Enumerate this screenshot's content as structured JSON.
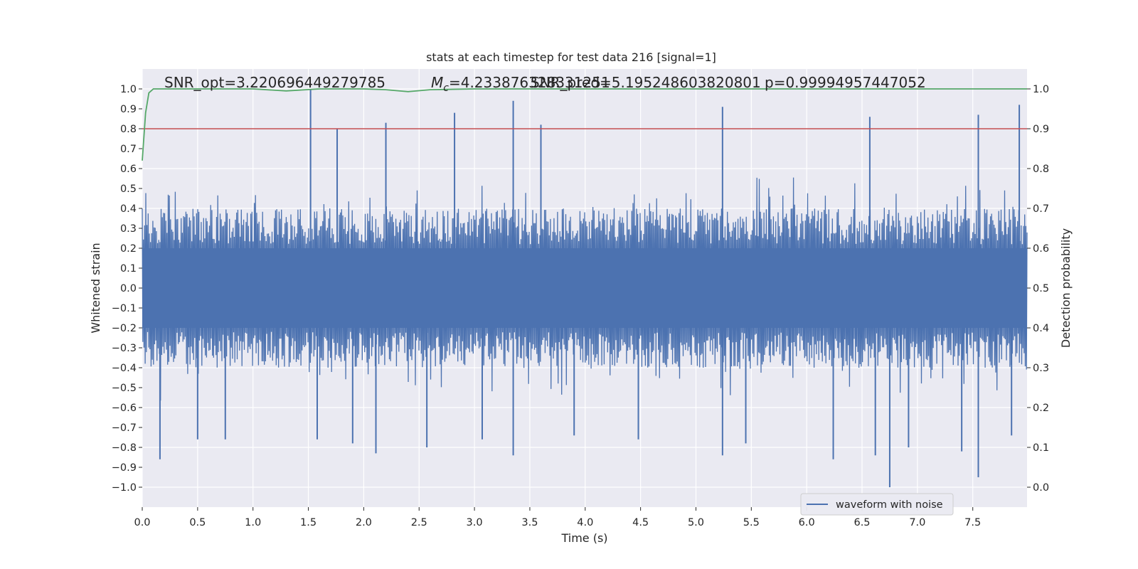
{
  "chart_data": {
    "type": "line",
    "title": "stats at each timestep for test data 216 [signal=1]",
    "xlabel": "Time (s)",
    "ylabel": "Whitened strain",
    "ylabel_right": "Detection probability",
    "xlim": [
      0.0,
      7.99
    ],
    "ylim": [
      -1.1,
      1.1
    ],
    "ylim_right": [
      -0.05,
      1.05
    ],
    "x_ticks": [
      "0.0",
      "0.5",
      "1.0",
      "1.5",
      "2.0",
      "2.5",
      "3.0",
      "3.5",
      "4.0",
      "4.5",
      "5.0",
      "5.5",
      "6.0",
      "6.5",
      "7.0",
      "7.5"
    ],
    "y_ticks": [
      "1.0",
      "0.9",
      "0.8",
      "0.7",
      "0.6",
      "0.5",
      "0.4",
      "0.3",
      "0.2",
      "0.1",
      "0.0",
      "−0.1",
      "−0.2",
      "−0.3",
      "−0.4",
      "−0.5",
      "−0.6",
      "−0.7",
      "−0.8",
      "−0.9",
      "−1.0"
    ],
    "y_ticks_right": [
      "1.0",
      "0.9",
      "0.8",
      "0.7",
      "0.6",
      "0.5",
      "0.4",
      "0.3",
      "0.2",
      "0.1",
      "0.0"
    ],
    "grid": true,
    "legend_position": "lower-right",
    "annotations": {
      "snr_opt": "SNR_opt=3.220696449279785",
      "mc_prefix": "M",
      "mc_sub": "c",
      "mc_value": "=4.233876328331251",
      "snr_pred": "SNR_pred=5.195248603820801",
      "p_value": "p=0.99994957447052"
    },
    "threshold": {
      "value": 0.9,
      "axis": "right",
      "color": "#c44e52"
    },
    "series": [
      {
        "name": "waveform with noise",
        "axis": "left",
        "color": "#4c72b0",
        "description_values": "dense whitened strain trace spanning roughly -0.6 to 0.6 with occasional spikes toward ±1.0",
        "spikes": [
          {
            "x": 0.16,
            "y": -0.86
          },
          {
            "x": 1.52,
            "y": 1.0
          },
          {
            "x": 2.11,
            "y": -0.83
          },
          {
            "x": 3.35,
            "y": 0.94
          },
          {
            "x": 3.35,
            "y": -0.84
          },
          {
            "x": 5.24,
            "y": 0.91
          },
          {
            "x": 5.24,
            "y": -0.84
          },
          {
            "x": 6.24,
            "y": -0.86
          },
          {
            "x": 6.62,
            "y": -0.84
          },
          {
            "x": 6.75,
            "y": -1.0
          },
          {
            "x": 7.55,
            "y": 0.87
          },
          {
            "x": 7.55,
            "y": -0.95
          },
          {
            "x": 7.92,
            "y": 0.92
          },
          {
            "x": 2.82,
            "y": 0.88
          },
          {
            "x": 1.76,
            "y": 0.8
          },
          {
            "x": 2.2,
            "y": 0.83
          },
          {
            "x": 3.6,
            "y": 0.82
          },
          {
            "x": 6.57,
            "y": 0.86
          },
          {
            "x": 0.5,
            "y": -0.76
          },
          {
            "x": 0.75,
            "y": -0.76
          },
          {
            "x": 1.58,
            "y": -0.76
          },
          {
            "x": 1.9,
            "y": -0.78
          },
          {
            "x": 2.57,
            "y": -0.8
          },
          {
            "x": 3.07,
            "y": -0.76
          },
          {
            "x": 3.9,
            "y": -0.74
          },
          {
            "x": 4.48,
            "y": -0.76
          },
          {
            "x": 5.45,
            "y": -0.78
          },
          {
            "x": 6.92,
            "y": -0.8
          },
          {
            "x": 7.4,
            "y": -0.82
          },
          {
            "x": 7.85,
            "y": -0.74
          }
        ]
      },
      {
        "name": "",
        "axis": "right",
        "color": "#55a868",
        "x": [
          0.0,
          0.03,
          0.06,
          0.1,
          0.2,
          1.0,
          1.3,
          1.6,
          2.0,
          2.2,
          2.4,
          2.6,
          3.0,
          4.0,
          5.0,
          6.0,
          7.0,
          7.99
        ],
        "values": [
          0.82,
          0.94,
          0.99,
          1.0,
          1.0,
          1.0,
          0.995,
          1.0,
          1.0,
          0.998,
          0.993,
          0.998,
          1.0,
          1.0,
          1.0,
          1.0,
          1.0,
          1.0
        ]
      }
    ]
  }
}
